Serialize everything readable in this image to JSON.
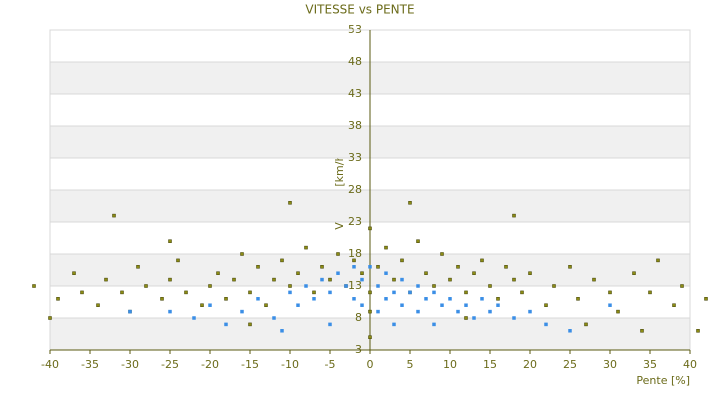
{
  "chart_data": {
    "type": "scatter",
    "title": "VITESSE vs PENTE",
    "x_label": "Pente [%]",
    "y_label": "Vitesse [km/h]",
    "xlim": [
      -40,
      40
    ],
    "xticks": [
      -40,
      -35,
      -30,
      -25,
      -20,
      -15,
      -10,
      -5,
      0,
      5,
      10,
      15,
      20,
      25,
      30,
      35,
      40
    ],
    "ylim": [
      3,
      53
    ],
    "yticks": [
      3,
      8,
      13,
      18,
      23,
      28,
      33,
      38,
      43,
      48,
      53
    ],
    "grid": true,
    "series": [
      {
        "color": "#8c8c14",
        "x": [
          -42,
          -39,
          -37,
          -36,
          -34,
          -33,
          -31,
          -30,
          -29,
          -28,
          -26,
          -25,
          -24,
          -23,
          -21,
          -20,
          -19,
          -18,
          -17,
          -16,
          -15,
          -14,
          -13,
          -12,
          -11,
          -10,
          -9,
          -8,
          -7,
          -6,
          -5,
          -4,
          -3,
          -2,
          -1,
          0,
          0,
          0,
          1,
          2,
          3,
          4,
          5,
          6,
          7,
          8,
          9,
          10,
          11,
          12,
          13,
          14,
          15,
          16,
          17,
          18,
          19,
          20,
          22,
          23,
          25,
          26,
          28,
          30,
          31,
          33,
          35,
          36,
          38,
          39,
          42,
          -32,
          -25,
          -10,
          5,
          18,
          -40,
          12,
          27,
          -15,
          0,
          34,
          41
        ],
        "y": [
          13,
          11,
          15,
          12,
          10,
          14,
          12,
          9,
          16,
          13,
          11,
          14,
          17,
          12,
          10,
          13,
          15,
          11,
          14,
          18,
          12,
          16,
          10,
          14,
          17,
          13,
          15,
          19,
          12,
          16,
          14,
          18,
          13,
          17,
          15,
          22,
          9,
          12,
          16,
          19,
          14,
          17,
          12,
          20,
          15,
          13,
          18,
          14,
          16,
          12,
          15,
          17,
          13,
          11,
          16,
          14,
          12,
          15,
          10,
          13,
          16,
          11,
          14,
          12,
          9,
          15,
          12,
          17,
          10,
          13,
          11,
          24,
          20,
          26,
          26,
          24,
          8,
          8,
          7,
          7,
          5,
          6,
          6
        ]
      },
      {
        "color": "#3a8ee6",
        "x": [
          -25,
          -22,
          -20,
          -18,
          -16,
          -14,
          -12,
          -10,
          -9,
          -8,
          -7,
          -6,
          -5,
          -4,
          -3,
          -2,
          -1,
          -1,
          1,
          2,
          2,
          3,
          4,
          4,
          5,
          6,
          6,
          7,
          8,
          9,
          10,
          11,
          12,
          13,
          14,
          15,
          16,
          18,
          20,
          22,
          25,
          -11,
          -5,
          3,
          8,
          -30,
          30,
          0,
          -2,
          1
        ],
        "y": [
          9,
          8,
          10,
          7,
          9,
          11,
          8,
          12,
          10,
          13,
          11,
          14,
          12,
          15,
          13,
          11,
          14,
          10,
          13,
          15,
          11,
          12,
          14,
          10,
          12,
          13,
          9,
          11,
          12,
          10,
          11,
          9,
          10,
          8,
          11,
          9,
          10,
          8,
          9,
          7,
          6,
          6,
          7,
          7,
          7,
          9,
          10,
          16,
          16,
          9
        ]
      }
    ]
  }
}
